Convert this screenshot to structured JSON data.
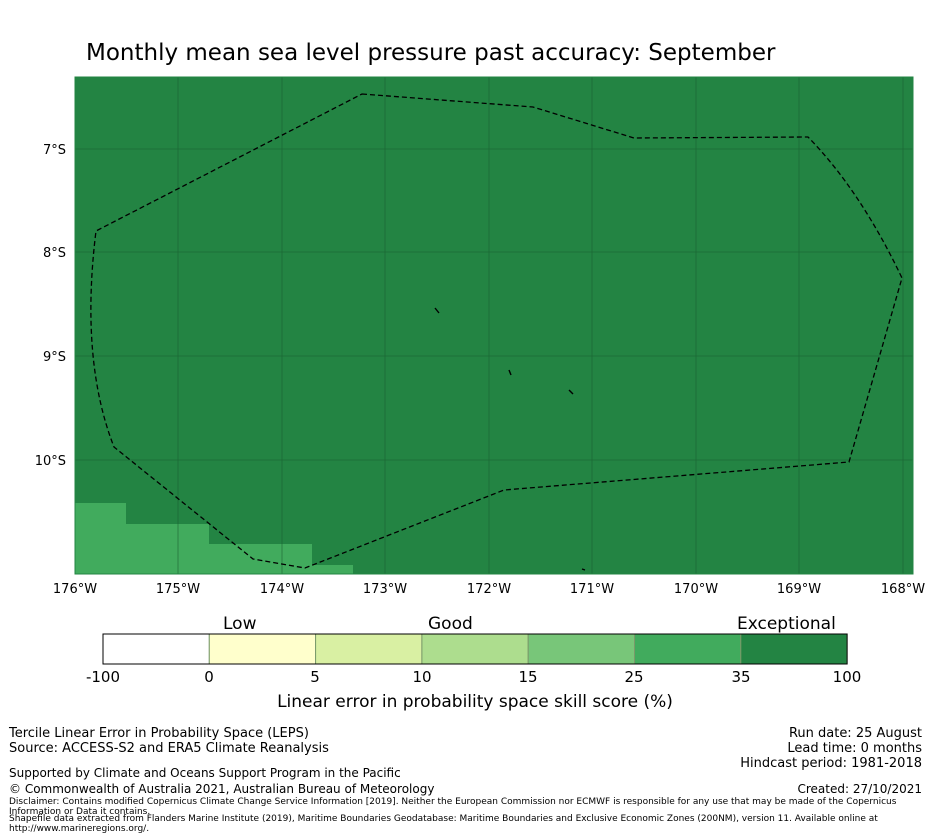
{
  "title": "Monthly mean sea level pressure past accuracy: September",
  "map": {
    "background_color": "#238443",
    "lower_color": "#41ab5d",
    "lat_ticks": [
      "7°S",
      "8°S",
      "9°S",
      "10°S"
    ],
    "lon_ticks": [
      "176°W",
      "175°W",
      "174°W",
      "173°W",
      "172°W",
      "171°W",
      "170°W",
      "169°W",
      "168°W"
    ],
    "boundary_label": ""
  },
  "colorbar": {
    "categories": [
      "Low",
      "Good",
      "Exceptional"
    ],
    "ticks": [
      "-100",
      "0",
      "5",
      "10",
      "15",
      "25",
      "35",
      "100"
    ],
    "colors": [
      "#ffffff",
      "#ffffcc",
      "#d9f0a3",
      "#addd8e",
      "#78c679",
      "#41ab5d",
      "#238443"
    ],
    "title": "Linear error in probability space skill score (%)"
  },
  "footer": {
    "method": "Tercile Linear Error in Probability Space (LEPS)",
    "source": "Source: ACCESS-S2 and ERA5 Climate Reanalysis",
    "supported": "Supported by Climate and Oceans Support Program in the Pacific",
    "copyright": "© Commonwealth of Australia 2021, Australian Bureau of Meteorology",
    "disclaimer": "Disclaimer: Contains modified Copernicus Climate Change Service Information [2019]. Neither the European Commission nor ECMWF is responsible for any use that may be made of the Copernicus Information or Data it contains.",
    "shapefile": "Shapefile data extracted from Flanders Marine Institute (2019), Maritime Boundaries Geodatabase: Maritime Boundaries and Exclusive Economic Zones (200NM), version 11. Available online at http://www.marineregions.org/.",
    "run_date": "Run date: 25 August",
    "lead_time": "Lead time: 0 months",
    "hindcast": "Hindcast period: 1981-2018",
    "created": "Created: 27/10/2021"
  }
}
